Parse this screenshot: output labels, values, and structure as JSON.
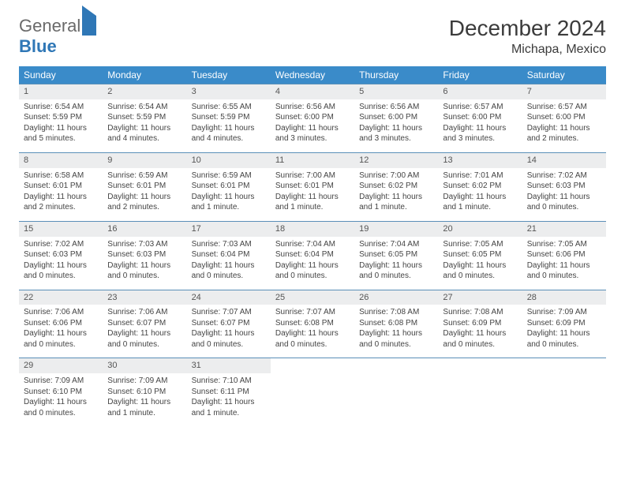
{
  "logo": {
    "text1": "General",
    "text2": "Blue"
  },
  "title": "December 2024",
  "location": "Michapa, Mexico",
  "dayHeaders": [
    "Sunday",
    "Monday",
    "Tuesday",
    "Wednesday",
    "Thursday",
    "Friday",
    "Saturday"
  ],
  "colors": {
    "header_bg": "#3a8bc9",
    "header_text": "#ffffff",
    "daynum_bg": "#ecedee",
    "border": "#5a8fb8",
    "logo_gray": "#6a6a6a",
    "logo_blue": "#2f77b6"
  },
  "weeks": [
    [
      {
        "n": "1",
        "sr": "Sunrise: 6:54 AM",
        "ss": "Sunset: 5:59 PM",
        "d1": "Daylight: 11 hours",
        "d2": "and 5 minutes."
      },
      {
        "n": "2",
        "sr": "Sunrise: 6:54 AM",
        "ss": "Sunset: 5:59 PM",
        "d1": "Daylight: 11 hours",
        "d2": "and 4 minutes."
      },
      {
        "n": "3",
        "sr": "Sunrise: 6:55 AM",
        "ss": "Sunset: 5:59 PM",
        "d1": "Daylight: 11 hours",
        "d2": "and 4 minutes."
      },
      {
        "n": "4",
        "sr": "Sunrise: 6:56 AM",
        "ss": "Sunset: 6:00 PM",
        "d1": "Daylight: 11 hours",
        "d2": "and 3 minutes."
      },
      {
        "n": "5",
        "sr": "Sunrise: 6:56 AM",
        "ss": "Sunset: 6:00 PM",
        "d1": "Daylight: 11 hours",
        "d2": "and 3 minutes."
      },
      {
        "n": "6",
        "sr": "Sunrise: 6:57 AM",
        "ss": "Sunset: 6:00 PM",
        "d1": "Daylight: 11 hours",
        "d2": "and 3 minutes."
      },
      {
        "n": "7",
        "sr": "Sunrise: 6:57 AM",
        "ss": "Sunset: 6:00 PM",
        "d1": "Daylight: 11 hours",
        "d2": "and 2 minutes."
      }
    ],
    [
      {
        "n": "8",
        "sr": "Sunrise: 6:58 AM",
        "ss": "Sunset: 6:01 PM",
        "d1": "Daylight: 11 hours",
        "d2": "and 2 minutes."
      },
      {
        "n": "9",
        "sr": "Sunrise: 6:59 AM",
        "ss": "Sunset: 6:01 PM",
        "d1": "Daylight: 11 hours",
        "d2": "and 2 minutes."
      },
      {
        "n": "10",
        "sr": "Sunrise: 6:59 AM",
        "ss": "Sunset: 6:01 PM",
        "d1": "Daylight: 11 hours",
        "d2": "and 1 minute."
      },
      {
        "n": "11",
        "sr": "Sunrise: 7:00 AM",
        "ss": "Sunset: 6:01 PM",
        "d1": "Daylight: 11 hours",
        "d2": "and 1 minute."
      },
      {
        "n": "12",
        "sr": "Sunrise: 7:00 AM",
        "ss": "Sunset: 6:02 PM",
        "d1": "Daylight: 11 hours",
        "d2": "and 1 minute."
      },
      {
        "n": "13",
        "sr": "Sunrise: 7:01 AM",
        "ss": "Sunset: 6:02 PM",
        "d1": "Daylight: 11 hours",
        "d2": "and 1 minute."
      },
      {
        "n": "14",
        "sr": "Sunrise: 7:02 AM",
        "ss": "Sunset: 6:03 PM",
        "d1": "Daylight: 11 hours",
        "d2": "and 0 minutes."
      }
    ],
    [
      {
        "n": "15",
        "sr": "Sunrise: 7:02 AM",
        "ss": "Sunset: 6:03 PM",
        "d1": "Daylight: 11 hours",
        "d2": "and 0 minutes."
      },
      {
        "n": "16",
        "sr": "Sunrise: 7:03 AM",
        "ss": "Sunset: 6:03 PM",
        "d1": "Daylight: 11 hours",
        "d2": "and 0 minutes."
      },
      {
        "n": "17",
        "sr": "Sunrise: 7:03 AM",
        "ss": "Sunset: 6:04 PM",
        "d1": "Daylight: 11 hours",
        "d2": "and 0 minutes."
      },
      {
        "n": "18",
        "sr": "Sunrise: 7:04 AM",
        "ss": "Sunset: 6:04 PM",
        "d1": "Daylight: 11 hours",
        "d2": "and 0 minutes."
      },
      {
        "n": "19",
        "sr": "Sunrise: 7:04 AM",
        "ss": "Sunset: 6:05 PM",
        "d1": "Daylight: 11 hours",
        "d2": "and 0 minutes."
      },
      {
        "n": "20",
        "sr": "Sunrise: 7:05 AM",
        "ss": "Sunset: 6:05 PM",
        "d1": "Daylight: 11 hours",
        "d2": "and 0 minutes."
      },
      {
        "n": "21",
        "sr": "Sunrise: 7:05 AM",
        "ss": "Sunset: 6:06 PM",
        "d1": "Daylight: 11 hours",
        "d2": "and 0 minutes."
      }
    ],
    [
      {
        "n": "22",
        "sr": "Sunrise: 7:06 AM",
        "ss": "Sunset: 6:06 PM",
        "d1": "Daylight: 11 hours",
        "d2": "and 0 minutes."
      },
      {
        "n": "23",
        "sr": "Sunrise: 7:06 AM",
        "ss": "Sunset: 6:07 PM",
        "d1": "Daylight: 11 hours",
        "d2": "and 0 minutes."
      },
      {
        "n": "24",
        "sr": "Sunrise: 7:07 AM",
        "ss": "Sunset: 6:07 PM",
        "d1": "Daylight: 11 hours",
        "d2": "and 0 minutes."
      },
      {
        "n": "25",
        "sr": "Sunrise: 7:07 AM",
        "ss": "Sunset: 6:08 PM",
        "d1": "Daylight: 11 hours",
        "d2": "and 0 minutes."
      },
      {
        "n": "26",
        "sr": "Sunrise: 7:08 AM",
        "ss": "Sunset: 6:08 PM",
        "d1": "Daylight: 11 hours",
        "d2": "and 0 minutes."
      },
      {
        "n": "27",
        "sr": "Sunrise: 7:08 AM",
        "ss": "Sunset: 6:09 PM",
        "d1": "Daylight: 11 hours",
        "d2": "and 0 minutes."
      },
      {
        "n": "28",
        "sr": "Sunrise: 7:09 AM",
        "ss": "Sunset: 6:09 PM",
        "d1": "Daylight: 11 hours",
        "d2": "and 0 minutes."
      }
    ],
    [
      {
        "n": "29",
        "sr": "Sunrise: 7:09 AM",
        "ss": "Sunset: 6:10 PM",
        "d1": "Daylight: 11 hours",
        "d2": "and 0 minutes."
      },
      {
        "n": "30",
        "sr": "Sunrise: 7:09 AM",
        "ss": "Sunset: 6:10 PM",
        "d1": "Daylight: 11 hours",
        "d2": "and 1 minute."
      },
      {
        "n": "31",
        "sr": "Sunrise: 7:10 AM",
        "ss": "Sunset: 6:11 PM",
        "d1": "Daylight: 11 hours",
        "d2": "and 1 minute."
      },
      null,
      null,
      null,
      null
    ]
  ]
}
